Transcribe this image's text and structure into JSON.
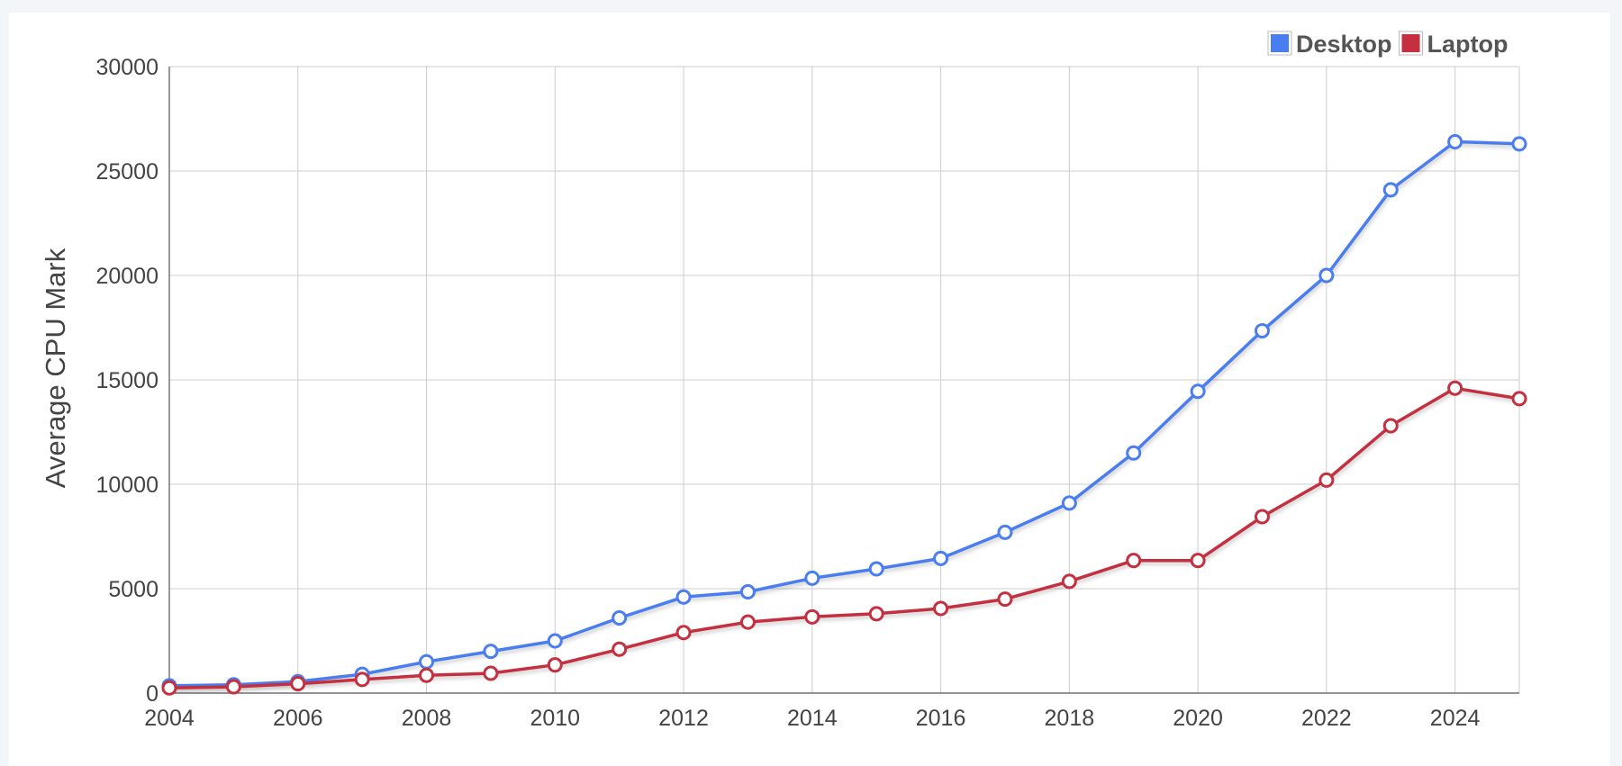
{
  "chart_data": {
    "type": "line",
    "title": "",
    "xlabel": "",
    "ylabel": "Average CPU Mark",
    "xlim": [
      2004,
      2025
    ],
    "ylim": [
      0,
      30000
    ],
    "x_ticks": [
      "2004",
      "2006",
      "2008",
      "2010",
      "2012",
      "2014",
      "2016",
      "2018",
      "2020",
      "2022",
      "2024"
    ],
    "y_ticks": [
      "0",
      "5000",
      "10000",
      "15000",
      "20000",
      "25000",
      "30000"
    ],
    "grid": true,
    "legend_position": "top-right",
    "x": [
      2004,
      2005,
      2006,
      2007,
      2008,
      2009,
      2010,
      2011,
      2012,
      2013,
      2014,
      2015,
      2016,
      2017,
      2018,
      2019,
      2020,
      2021,
      2022,
      2023,
      2024,
      2025
    ],
    "series": [
      {
        "name": "Desktop",
        "color": "#4a7ef0",
        "values": [
          350,
          400,
          550,
          900,
          1500,
          2000,
          2500,
          3600,
          4600,
          4850,
          5500,
          5950,
          6450,
          7700,
          9100,
          11500,
          14450,
          17350,
          20000,
          24100,
          26400,
          26300
        ]
      },
      {
        "name": "Laptop",
        "color": "#c4303f",
        "values": [
          250,
          300,
          450,
          650,
          850,
          950,
          1350,
          2100,
          2900,
          3400,
          3650,
          3800,
          4050,
          4500,
          5350,
          6350,
          6350,
          8450,
          10200,
          12800,
          14600,
          14100
        ]
      }
    ]
  }
}
